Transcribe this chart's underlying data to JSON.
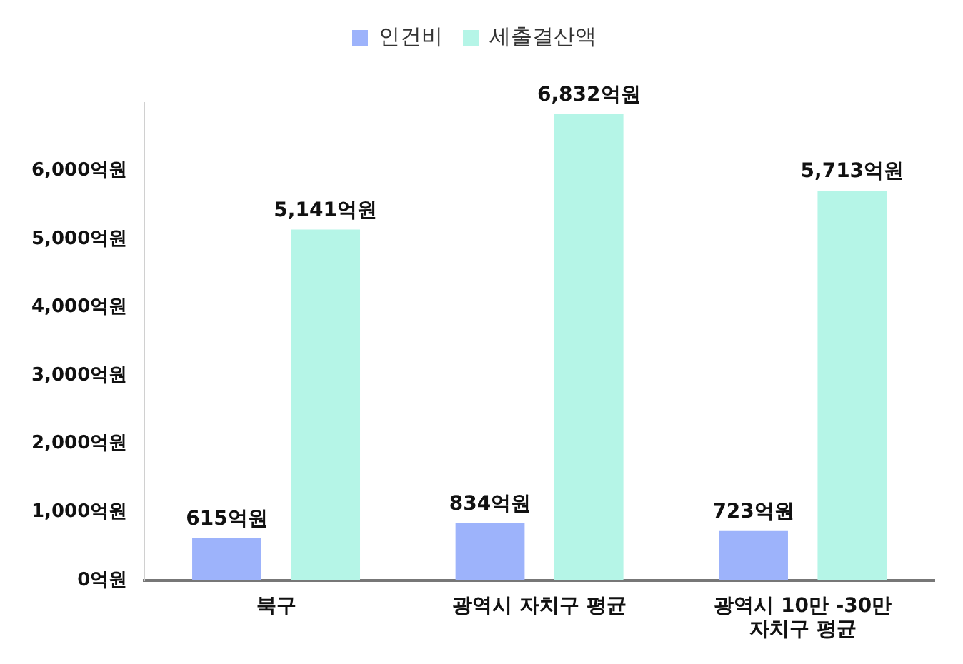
{
  "chart_data": {
    "type": "bar",
    "categories": [
      "북구",
      "광역시 자치구 평균",
      "광역시 10만 -30만\n자치구 평균"
    ],
    "series": [
      {
        "name": "인건비",
        "color": "#9db3fb",
        "values": [
          615,
          834,
          723
        ],
        "value_labels": [
          "615억원",
          "834억원",
          "723억원"
        ]
      },
      {
        "name": "세출결산액",
        "color": "#b5f5e7",
        "values": [
          5141,
          6832,
          5713
        ],
        "value_labels": [
          "5,141억원",
          "6,832억원",
          "5,713억원"
        ]
      }
    ],
    "ylim": [
      0,
      7000
    ],
    "yticks": [
      {
        "value": 0,
        "label": "0억원"
      },
      {
        "value": 1000,
        "label": "1,000억원"
      },
      {
        "value": 2000,
        "label": "2,000억원"
      },
      {
        "value": 3000,
        "label": "3,000억원"
      },
      {
        "value": 4000,
        "label": "4,000억원"
      },
      {
        "value": 5000,
        "label": "5,000억원"
      },
      {
        "value": 6000,
        "label": "6,000억원"
      }
    ],
    "grid": false,
    "legend": "top"
  }
}
